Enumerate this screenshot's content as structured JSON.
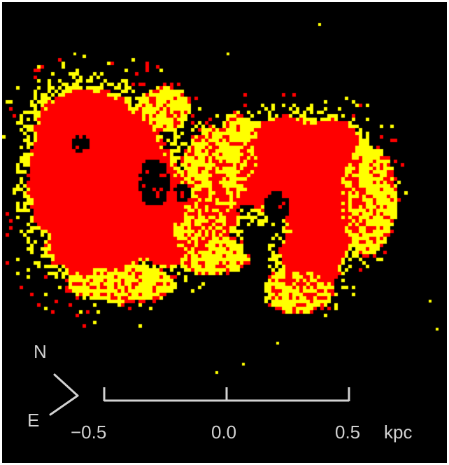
{
  "image": {
    "subject": "two-colour pixel map of a galaxy-like emission",
    "background_color": "#000000",
    "colors": {
      "primary": "#ff0000",
      "secondary": "#ffff00"
    }
  },
  "compass": {
    "north": "N",
    "east": "E",
    "color": "#d2d2d2"
  },
  "scale_bar": {
    "ticks": [
      "−0.5",
      "0.0",
      "0.5"
    ],
    "unit": "kpc",
    "color": "#d2d2d2"
  }
}
